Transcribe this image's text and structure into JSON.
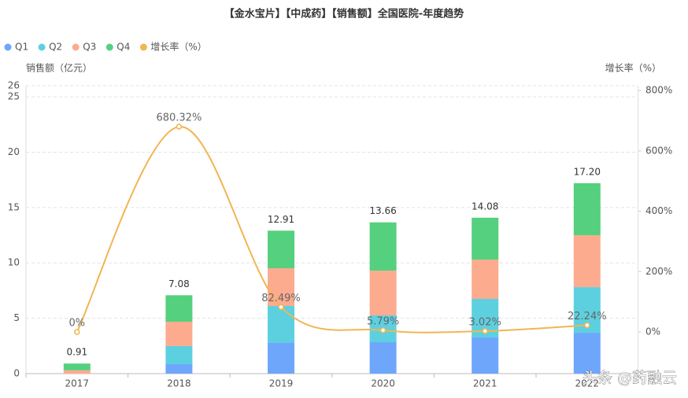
{
  "chart_data": {
    "type": "bar",
    "title": "【金水宝片】【中成药】【销售额】全国医院-年度趋势",
    "y_axis_label": "销售额（亿元）",
    "y2_axis_label": "增长率（%）",
    "categories": [
      "2017",
      "2018",
      "2019",
      "2020",
      "2021",
      "2022"
    ],
    "stacked": true,
    "series": [
      {
        "name": "Q1",
        "color": "#6ea6fc",
        "values": [
          0,
          0.85,
          2.77,
          2.84,
          3.27,
          3.69
        ]
      },
      {
        "name": "Q2",
        "color": "#5dd0e0",
        "values": [
          0,
          1.64,
          3.34,
          2.42,
          3.48,
          4.12
        ]
      },
      {
        "name": "Q3",
        "color": "#fdab8f",
        "values": [
          0.3,
          2.2,
          3.41,
          4.04,
          3.55,
          4.69
        ]
      },
      {
        "name": "Q4",
        "color": "#55d07e",
        "values": [
          0.61,
          2.39,
          3.39,
          4.36,
          3.78,
          4.7
        ]
      },
      {
        "name": "增长率（%）",
        "type": "line",
        "axis": "y2",
        "color": "#f2b552",
        "values": [
          0,
          680.32,
          82.49,
          5.79,
          3.02,
          22.24
        ],
        "value_labels": [
          "0%",
          "680.32%",
          "82.49%",
          "5.79%",
          "3.02%",
          "22.24%"
        ]
      }
    ],
    "totals": [
      0.91,
      7.08,
      12.91,
      13.66,
      14.08,
      17.2
    ],
    "total_value_labels": [
      "0.91",
      "7.08",
      "12.91",
      "13.66",
      "14.08",
      "17.20"
    ],
    "ylim": [
      0,
      26
    ],
    "yticks": [
      0,
      5,
      10,
      15,
      20,
      25,
      26
    ],
    "y2lim": [
      -138,
      816
    ],
    "y2ticks": [
      {
        "value": 0,
        "label": "0%"
      },
      {
        "value": 200,
        "label": "200%"
      },
      {
        "value": 400,
        "label": "400%"
      },
      {
        "value": 600,
        "label": "600%"
      },
      {
        "value": 800,
        "label": "800%"
      }
    ],
    "grid": true,
    "legend": "top-left",
    "watermark": "头条 @药融云"
  }
}
